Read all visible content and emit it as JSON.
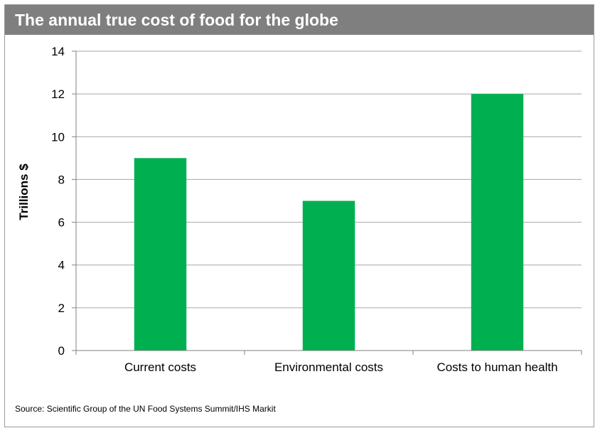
{
  "chart_data": {
    "type": "bar",
    "title": "The annual true cost of food for the globe",
    "xlabel": "",
    "ylabel": "Trillions $",
    "categories": [
      "Current costs",
      "Environmental costs",
      "Costs to human health"
    ],
    "values": [
      9,
      7,
      12
    ],
    "ylim": [
      0,
      14
    ],
    "yticks": [
      0,
      2,
      4,
      6,
      8,
      10,
      12,
      14
    ],
    "grid": true,
    "legend": "none",
    "bar_color": "#00b050",
    "source": "Source: Scientific Group of the UN Food Systems Summit/IHS Markit"
  },
  "colors": {
    "title_bar": "#7f7f7f",
    "gridline": "#a6a6a6"
  }
}
